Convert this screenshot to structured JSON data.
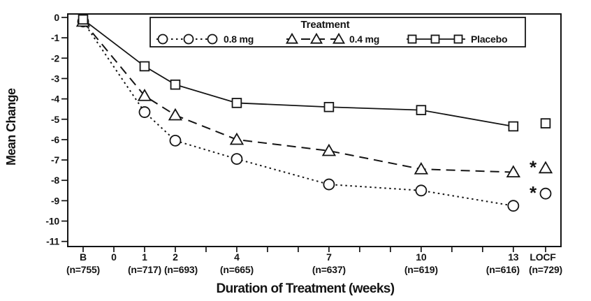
{
  "chart_data": {
    "type": "line",
    "xlabel": "Duration of Treatment (weeks)",
    "ylabel": "Mean Change",
    "legend": {
      "title": "Treatment",
      "position": "top-inside",
      "entries": [
        "0.8 mg",
        "0.4 mg",
        "Placebo"
      ]
    },
    "significance_symbol": "*",
    "x_axis": {
      "xlim": [
        -1.5,
        14.55
      ],
      "ticks": [
        {
          "x": -1,
          "label": "B",
          "n_label": "(n=755)"
        },
        {
          "x": 0,
          "label": "0",
          "n_label": null
        },
        {
          "x": 1,
          "label": "1",
          "n_label": "(n=717)"
        },
        {
          "x": 2,
          "label": "2",
          "n_label": "(n=693)"
        },
        {
          "x": 4,
          "label": "4",
          "n_label": "(n=665)"
        },
        {
          "x": 7,
          "label": "7",
          "n_label": "(n=637)"
        },
        {
          "x": 10,
          "label": "10",
          "n_label": "(n=619)"
        },
        {
          "x": 13,
          "label": "13",
          "n_label": "(n=616)"
        },
        {
          "x": 14.05,
          "label": "LOCF",
          "n_label": "(n=729)"
        }
      ],
      "minor_ticks": [
        3,
        5,
        6,
        8,
        9,
        11,
        12
      ]
    },
    "y_axis": {
      "ylim": [
        -11.25,
        0.17
      ],
      "ticks": [
        0,
        -1,
        -2,
        -3,
        -4,
        -5,
        -6,
        -7,
        -8,
        -9,
        -10,
        -11
      ]
    },
    "series": [
      {
        "name": "0.8 mg",
        "marker": "circle",
        "line_style": "dotted",
        "points": [
          {
            "x": -1,
            "y": -0.2
          },
          {
            "x": 1,
            "y": -4.65
          },
          {
            "x": 2,
            "y": -6.05
          },
          {
            "x": 4,
            "y": -6.95
          },
          {
            "x": 7,
            "y": -8.2
          },
          {
            "x": 10,
            "y": -8.5
          },
          {
            "x": 13,
            "y": -9.25
          }
        ],
        "locf_point": {
          "x": 14.05,
          "y": -8.65,
          "significant": true
        }
      },
      {
        "name": "0.4 mg",
        "marker": "triangle",
        "line_style": "dashed",
        "points": [
          {
            "x": -1,
            "y": -0.2
          },
          {
            "x": 1,
            "y": -3.85
          },
          {
            "x": 2,
            "y": -4.8
          },
          {
            "x": 4,
            "y": -6.0
          },
          {
            "x": 7,
            "y": -6.55
          },
          {
            "x": 10,
            "y": -7.45
          },
          {
            "x": 13,
            "y": -7.6
          }
        ],
        "locf_point": {
          "x": 14.05,
          "y": -7.4,
          "significant": true
        }
      },
      {
        "name": "Placebo",
        "marker": "square",
        "line_style": "solid",
        "points": [
          {
            "x": -1,
            "y": -0.1
          },
          {
            "x": 1,
            "y": -2.4
          },
          {
            "x": 2,
            "y": -3.3
          },
          {
            "x": 4,
            "y": -4.2
          },
          {
            "x": 7,
            "y": -4.4
          },
          {
            "x": 10,
            "y": -4.55
          },
          {
            "x": 13,
            "y": -5.35
          }
        ],
        "locf_point": {
          "x": 14.05,
          "y": -5.2,
          "significant": false
        }
      }
    ]
  }
}
